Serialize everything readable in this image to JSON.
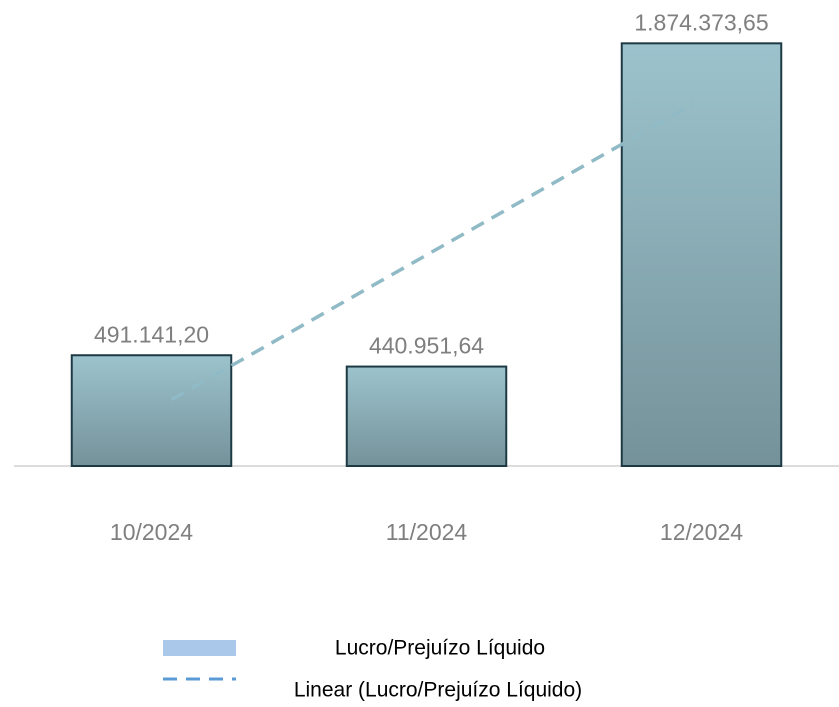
{
  "chart_data": {
    "type": "bar",
    "categories": [
      "10/2024",
      "11/2024",
      "12/2024"
    ],
    "series": [
      {
        "name": "Lucro/Prejuízo Líquido",
        "color": "#9cc3cd",
        "edge_color": "#1d3a44",
        "legend_color": "#a9c8ea",
        "values": [
          491141.2,
          440951.64,
          1874373.65
        ],
        "value_labels": [
          "491.141,20",
          "440.951,64",
          "1.874.373,65"
        ]
      }
    ],
    "trendline": {
      "name": "Linear (Lucro/Prejuízo Líquido)",
      "kind": "linear",
      "color": "#8fbac6",
      "legend_color": "#5b9bd5"
    },
    "ylim": [
      0,
      2000000
    ],
    "grid": false
  }
}
